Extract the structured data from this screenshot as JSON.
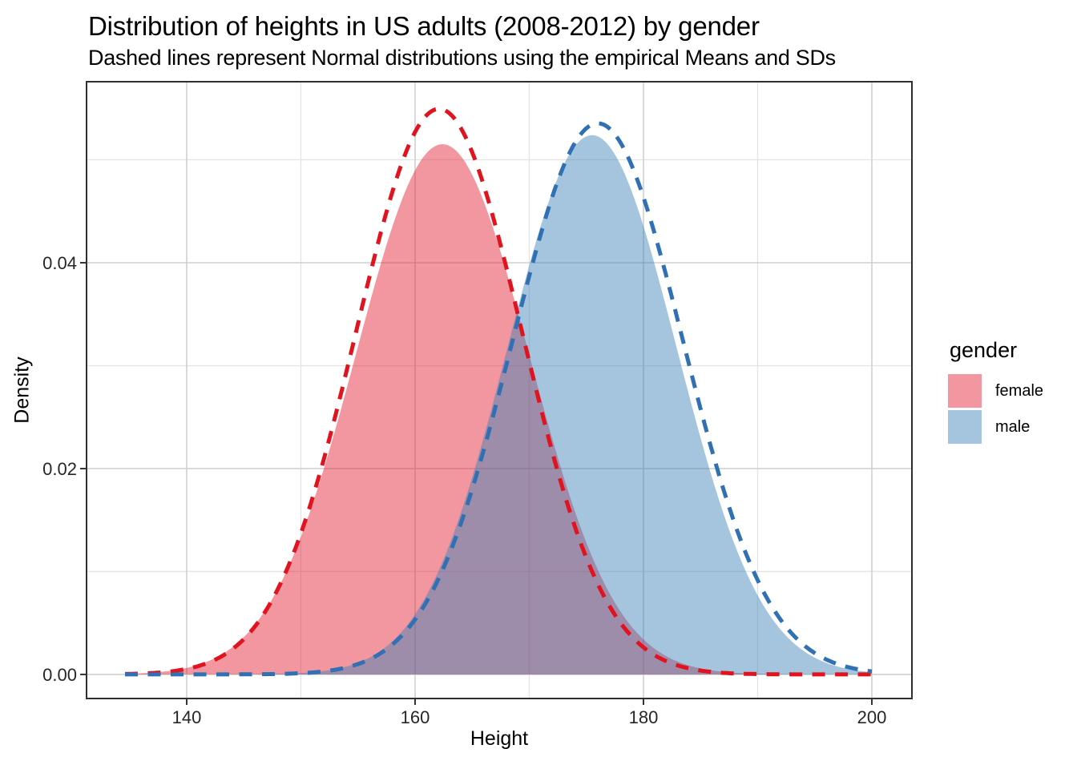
{
  "title": "Distribution of heights in US adults (2008-2012) by gender",
  "subtitle": "Dashed lines represent Normal distributions using the empirical Means and SDs",
  "x_axis": {
    "label": "Height",
    "tick_labels": [
      "140",
      "160",
      "180",
      "200"
    ],
    "tick_values": [
      140,
      160,
      180,
      200
    ],
    "minor_values": [
      150,
      170,
      190
    ]
  },
  "y_axis": {
    "label": "Density",
    "tick_labels": [
      "0.00",
      "0.02",
      "0.04"
    ],
    "tick_values": [
      0,
      0.02,
      0.04
    ],
    "minor_values": [
      0.01,
      0.03,
      0.05
    ]
  },
  "legend": {
    "title": "gender",
    "items": [
      {
        "label": "female",
        "swatch": "#F297A0"
      },
      {
        "label": "male",
        "swatch": "#A5C5DF"
      }
    ]
  },
  "colors": {
    "grid_major": "#D0D0D0",
    "grid_minor": "#E3E3E3",
    "panel_border": "#2F2F2F",
    "tick_mark": "#333333",
    "tick_label": "#262626",
    "female_fill_base": "#E3182D",
    "male_fill_base": "#377EB8",
    "female_dash_line": "#E0131F",
    "male_dash_line": "#3070B3"
  },
  "chart_data": {
    "type": "area",
    "title": "Distribution of heights in US adults (2008-2012) by gender",
    "subtitle": "Dashed lines represent Normal distributions using the empirical Means and SDs",
    "xlabel": "Height",
    "ylabel": "Density",
    "xlim": [
      131.23,
      203.51
    ],
    "ylim": [
      -0.00234,
      0.05759
    ],
    "x_data_range": [
      134.6,
      200.1
    ],
    "grid": "major+minor",
    "legend_position": "right",
    "series": [
      {
        "name": "female_kde_fill",
        "gender": "female",
        "kind": "filled_density",
        "mean": 162.4,
        "sd": 7.55,
        "amplitude": 0.975,
        "peak_density": 0.0514,
        "fill_base": "#E3182D",
        "fill_alpha": 0.45
      },
      {
        "name": "male_kde_fill",
        "gender": "male",
        "kind": "filled_density",
        "mean": 175.5,
        "sd": 7.4,
        "amplitude": 0.972,
        "peak_density": 0.0524,
        "fill_base": "#377EB8",
        "fill_alpha": 0.45
      },
      {
        "name": "female_normal_dashed",
        "gender": "female",
        "kind": "dashed_normal",
        "mean": 162.1,
        "sd": 7.26,
        "amplitude": 1.0,
        "peak_density": 0.0549,
        "stroke": "#E0131F"
      },
      {
        "name": "male_normal_dashed",
        "gender": "male",
        "kind": "dashed_normal",
        "mean": 176.0,
        "sd": 7.45,
        "amplitude": 1.0,
        "peak_density": 0.0535,
        "stroke": "#3070B3"
      }
    ]
  }
}
